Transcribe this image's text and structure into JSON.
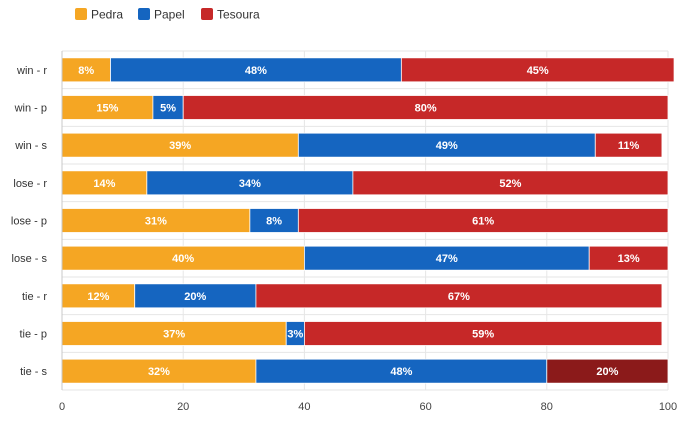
{
  "chart_data": {
    "type": "bar",
    "orientation": "horizontal",
    "stacked": true,
    "categories": [
      "win - r",
      "win - p",
      "win - s",
      "lose - r",
      "lose - p",
      "lose - s",
      "tie - r",
      "tie - p",
      "tie - s"
    ],
    "series": [
      {
        "name": "Pedra",
        "color": "#f5a623",
        "values": [
          8,
          15,
          39,
          14,
          31,
          40,
          12,
          37,
          32
        ]
      },
      {
        "name": "Papel",
        "color": "#1565c0",
        "values": [
          48,
          5,
          49,
          34,
          8,
          47,
          20,
          3,
          48
        ]
      },
      {
        "name": "Tesoura",
        "color": "#c62828",
        "values": [
          45,
          80,
          11,
          52,
          61,
          13,
          67,
          59,
          20
        ]
      }
    ],
    "highlight": {
      "category": "tie - s",
      "series": "Tesoura",
      "color": "#8b1a1a"
    },
    "x_ticks": [
      "0",
      "20",
      "40",
      "60",
      "80",
      "100"
    ],
    "xlim": [
      0,
      100
    ],
    "grid": true,
    "legend": "top-left",
    "value_suffix": "%"
  }
}
